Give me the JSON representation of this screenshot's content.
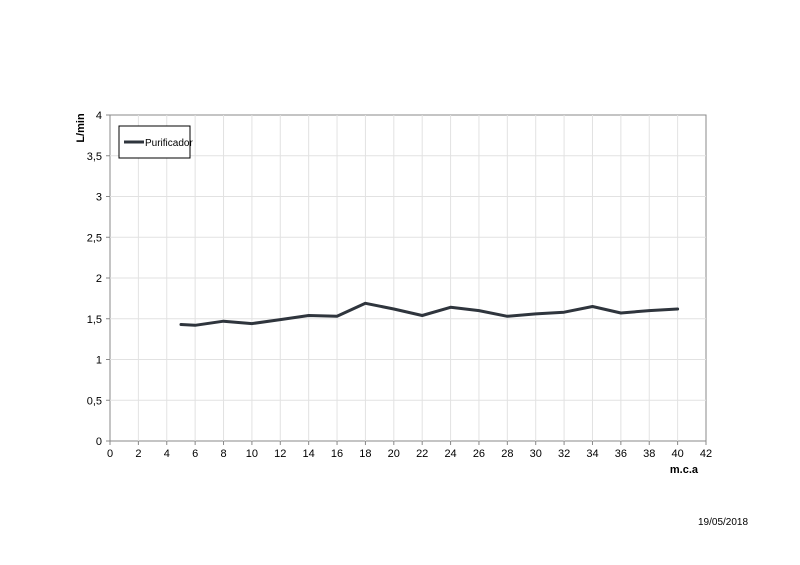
{
  "chart_data": {
    "type": "line",
    "title": "",
    "xlabel": "m.c.a",
    "ylabel": "L/min",
    "xlim": [
      0,
      42
    ],
    "ylim": [
      0,
      4
    ],
    "x_ticks": [
      0,
      2,
      4,
      6,
      8,
      10,
      12,
      14,
      16,
      18,
      20,
      22,
      24,
      26,
      28,
      30,
      32,
      34,
      36,
      38,
      40,
      42
    ],
    "y_ticks": [
      "0",
      "0,5",
      "1",
      "1,5",
      "2",
      "2,5",
      "3",
      "3,5",
      "4"
    ],
    "y_tick_values": [
      0,
      0.5,
      1,
      1.5,
      2,
      2.5,
      3,
      3.5,
      4
    ],
    "grid": true,
    "legend_position": "top-left",
    "series": [
      {
        "name": "Purificador",
        "color": "#2f353d",
        "x": [
          5,
          6,
          8,
          10,
          12,
          14,
          16,
          18,
          20,
          22,
          24,
          26,
          28,
          30,
          32,
          34,
          36,
          38,
          40
        ],
        "y": [
          1.43,
          1.42,
          1.47,
          1.44,
          1.49,
          1.54,
          1.53,
          1.69,
          1.62,
          1.54,
          1.64,
          1.6,
          1.53,
          1.56,
          1.58,
          1.65,
          1.57,
          1.6,
          1.62
        ]
      }
    ]
  },
  "footer": {
    "date": "19/05/2018"
  }
}
